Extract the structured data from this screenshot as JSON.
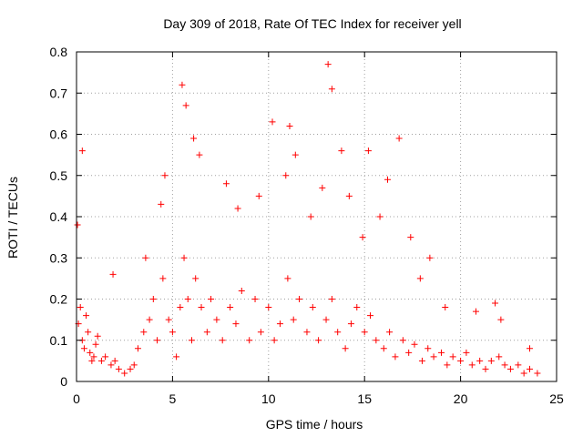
{
  "chart_data": {
    "type": "scatter",
    "title": "Day 309 of 2018, Rate Of TEC Index for receiver yell",
    "xlabel": "GPS time / hours",
    "ylabel": "ROTI / TECUs",
    "xlim": [
      0,
      25
    ],
    "ylim": [
      0,
      0.8
    ],
    "x_ticks": [
      0,
      5,
      10,
      15,
      20,
      25
    ],
    "y_ticks": [
      0,
      0.1,
      0.2,
      0.3,
      0.4,
      0.5,
      0.6,
      0.7,
      0.8
    ],
    "grid": true,
    "marker": "+",
    "series_color": "#ff0000",
    "series": [
      {
        "name": "ROTI",
        "x": [
          0.1,
          0.2,
          0.3,
          0.4,
          0.5,
          0.6,
          0.7,
          0.8,
          0.9,
          1.0,
          1.1,
          1.3,
          1.5,
          1.8,
          2.0,
          2.2,
          2.5,
          2.8,
          3.0,
          3.2,
          3.5,
          3.8,
          4.0,
          4.2,
          4.5,
          4.8,
          5.0,
          5.2,
          5.4,
          5.6,
          5.8,
          6.0,
          6.2,
          6.5,
          6.8,
          7.0,
          7.3,
          7.6,
          8.0,
          8.3,
          8.6,
          9.0,
          9.3,
          9.6,
          10.0,
          10.3,
          10.6,
          11.0,
          11.3,
          11.6,
          12.0,
          12.3,
          12.6,
          13.0,
          13.3,
          13.6,
          14.0,
          14.3,
          14.6,
          15.0,
          15.3,
          15.6,
          16.0,
          16.3,
          16.6,
          17.0,
          17.3,
          17.6,
          18.0,
          18.3,
          18.6,
          19.0,
          19.3,
          19.6,
          20.0,
          20.3,
          20.6,
          21.0,
          21.3,
          21.6,
          22.0,
          22.3,
          22.6,
          23.0,
          23.3,
          23.6,
          24.0,
          0.05,
          0.3,
          1.9,
          3.6,
          4.4,
          4.6,
          5.5,
          5.7,
          6.1,
          6.4,
          7.8,
          8.4,
          9.5,
          10.2,
          10.9,
          11.1,
          11.4,
          12.2,
          12.8,
          13.1,
          13.3,
          13.8,
          14.2,
          14.9,
          15.2,
          15.8,
          16.2,
          16.8,
          17.4,
          17.9,
          18.4,
          19.2,
          20.8,
          21.8,
          22.1,
          23.6
        ],
        "y": [
          0.14,
          0.18,
          0.1,
          0.08,
          0.16,
          0.12,
          0.07,
          0.05,
          0.06,
          0.09,
          0.11,
          0.05,
          0.06,
          0.04,
          0.05,
          0.03,
          0.02,
          0.03,
          0.04,
          0.08,
          0.12,
          0.15,
          0.2,
          0.1,
          0.25,
          0.15,
          0.12,
          0.06,
          0.18,
          0.3,
          0.2,
          0.1,
          0.25,
          0.18,
          0.12,
          0.2,
          0.15,
          0.1,
          0.18,
          0.14,
          0.22,
          0.1,
          0.2,
          0.12,
          0.18,
          0.1,
          0.14,
          0.25,
          0.15,
          0.2,
          0.12,
          0.18,
          0.1,
          0.15,
          0.2,
          0.12,
          0.08,
          0.14,
          0.18,
          0.12,
          0.16,
          0.1,
          0.08,
          0.12,
          0.06,
          0.1,
          0.07,
          0.09,
          0.05,
          0.08,
          0.06,
          0.07,
          0.04,
          0.06,
          0.05,
          0.07,
          0.04,
          0.05,
          0.03,
          0.05,
          0.06,
          0.04,
          0.03,
          0.04,
          0.02,
          0.03,
          0.02,
          0.38,
          0.56,
          0.26,
          0.3,
          0.43,
          0.5,
          0.72,
          0.67,
          0.59,
          0.55,
          0.48,
          0.42,
          0.45,
          0.63,
          0.5,
          0.62,
          0.55,
          0.4,
          0.47,
          0.77,
          0.71,
          0.56,
          0.45,
          0.35,
          0.56,
          0.4,
          0.49,
          0.59,
          0.35,
          0.25,
          0.3,
          0.18,
          0.17,
          0.19,
          0.15,
          0.08
        ]
      }
    ]
  }
}
